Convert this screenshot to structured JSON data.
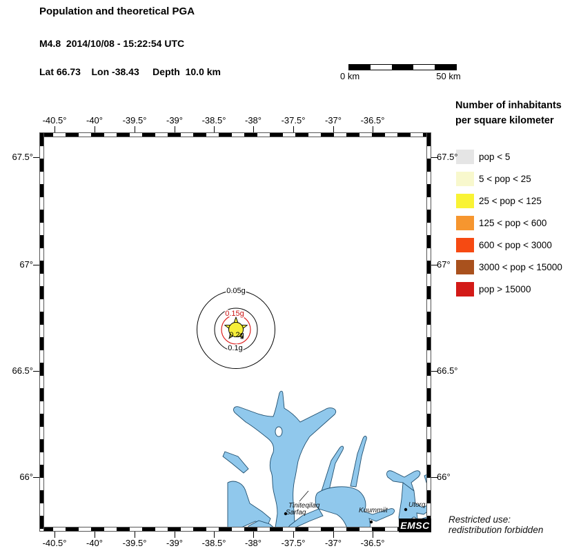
{
  "header": {
    "title": "Population and theoretical PGA",
    "event_line": "M4.8  2014/10/08 - 15:22:54 UTC",
    "location_line": "Lat 66.73    Lon -38.43     Depth  10.0 km"
  },
  "scalebar": {
    "left_label": "0 km",
    "right_label": "50 km"
  },
  "legend": {
    "title_line1": "Number of inhabitants",
    "title_line2": "per square kilometer",
    "items": [
      {
        "label": "pop < 5",
        "color": "#e5e5e5"
      },
      {
        "label": "5 < pop < 25",
        "color": "#f8f8cd"
      },
      {
        "label": "25 < pop < 125",
        "color": "#f9f335"
      },
      {
        "label": "125 < pop < 600",
        "color": "#f6962f"
      },
      {
        "label": "600 < pop < 3000",
        "color": "#f64a12"
      },
      {
        "label": "3000 < pop < 15000",
        "color": "#a9511d"
      },
      {
        "label": "pop > 15000",
        "color": "#d31a17"
      }
    ]
  },
  "map": {
    "top_axis": [
      "-40.5°",
      "-40°",
      "-39.5°",
      "-39°",
      "-38.5°",
      "-38°",
      "-37.5°",
      "-37°",
      "-36.5°"
    ],
    "bottom_axis": [
      "-40.5°",
      "-40°",
      "-39.5°",
      "-39°",
      "-38.5°",
      "-38°",
      "-37.5°",
      "-37°",
      "-36.5°"
    ],
    "left_axis": [
      "67.5°",
      "67°",
      "66.5°",
      "66°"
    ],
    "right_axis": [
      "67.5°",
      "67°",
      "66.5°",
      "66°"
    ],
    "pga_labels": {
      "c005": "0.05g",
      "c01": "0.1g",
      "c015": "0.15g",
      "c02": "0.2g"
    },
    "towns": {
      "t1a": "Tiniteqilaq",
      "t1b": "Sarfaq",
      "t2": "Kuummiit",
      "t3": "Utorq"
    },
    "logo_text": "EMSC"
  },
  "footer": {
    "line1": "Restricted use:",
    "line2": "redistribution forbidden"
  },
  "colors": {
    "water": "#90c8ec",
    "coast": "#1f4e6e",
    "star_yellow": "#f6ee39",
    "pga_red": "#dd2020",
    "pga_red_label": "#cc1111"
  }
}
